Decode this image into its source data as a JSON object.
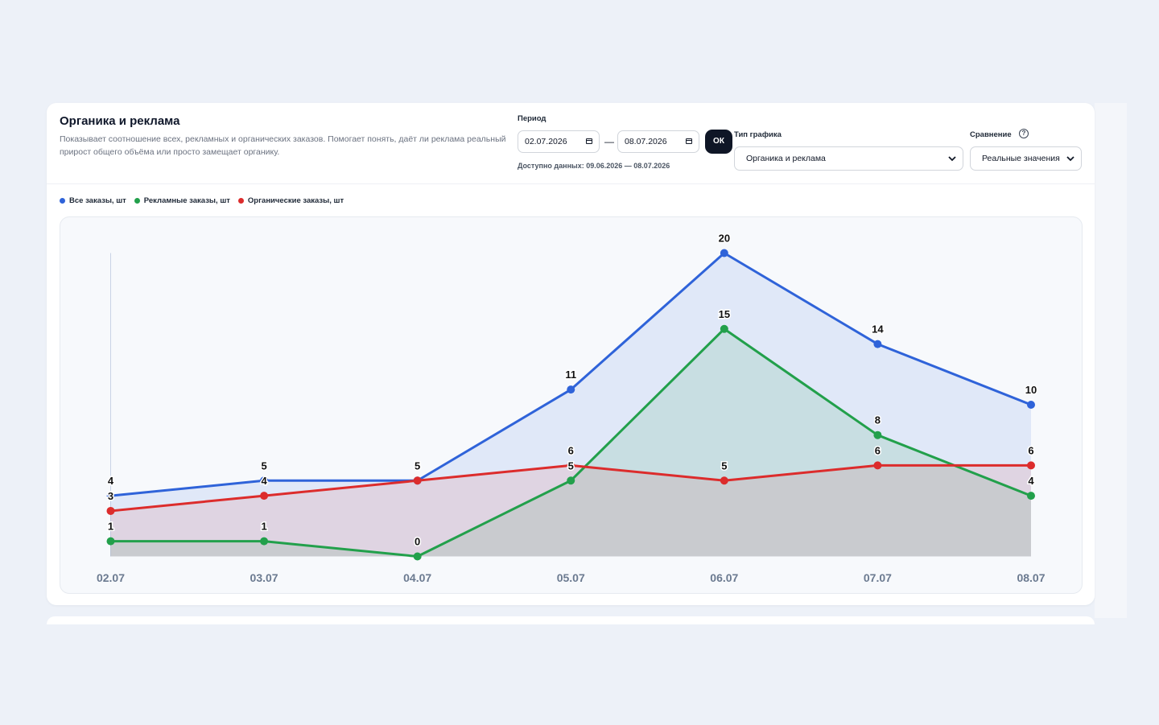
{
  "header": {
    "title": "Органика и реклама",
    "description": "Показывает соотношение всех, рекламных и органических заказов. Помогает понять, даёт ли реклама реальный прирост общего объёма или просто замещает органику."
  },
  "period": {
    "label": "Период",
    "from": "02.07.2026",
    "to": "08.07.2026",
    "separator": "—",
    "ok_label": "ОК",
    "available": "Доступно данных: 09.06.2026 — 08.07.2026"
  },
  "chart_type": {
    "label": "Тип графика",
    "value": "Органика и реклама"
  },
  "comparison": {
    "label": "Сравнение",
    "value": "Реальные значения",
    "help": "?"
  },
  "colors": {
    "all": "#2f63d9",
    "ads": "#22a04b",
    "organic": "#dc2c2c"
  },
  "icons": [
    "calendar-icon",
    "chevron-down-icon",
    "help-icon"
  ],
  "chart_data": {
    "type": "area",
    "categories": [
      "02.07",
      "03.07",
      "04.07",
      "05.07",
      "06.07",
      "07.07",
      "08.07"
    ],
    "series": [
      {
        "name": "Все заказы, шт",
        "values": [
          4,
          5,
          5,
          11,
          20,
          14,
          10
        ]
      },
      {
        "name": "Рекламные заказы, шт",
        "values": [
          1,
          1,
          0,
          5,
          15,
          8,
          4
        ]
      },
      {
        "name": "Органические заказы, шт",
        "values": [
          3,
          4,
          5,
          6,
          5,
          6,
          6
        ]
      }
    ],
    "ylim": [
      0,
      20
    ],
    "grid": false,
    "legend": "top-left"
  }
}
